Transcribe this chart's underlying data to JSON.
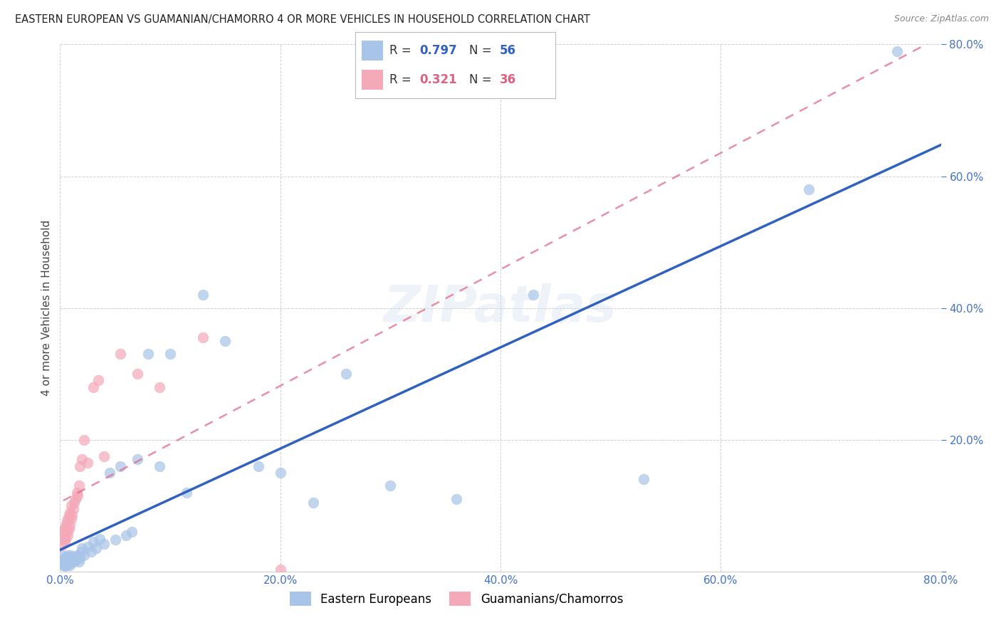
{
  "title": "EASTERN EUROPEAN VS GUAMANIAN/CHAMORRO 4 OR MORE VEHICLES IN HOUSEHOLD CORRELATION CHART",
  "source": "Source: ZipAtlas.com",
  "ylabel": "4 or more Vehicles in Household",
  "xlim": [
    0.0,
    0.8
  ],
  "ylim": [
    0.0,
    0.8
  ],
  "xticks": [
    0.0,
    0.2,
    0.4,
    0.6,
    0.8
  ],
  "yticks": [
    0.0,
    0.2,
    0.4,
    0.6,
    0.8
  ],
  "xticklabels": [
    "0.0%",
    "20.0%",
    "40.0%",
    "60.0%",
    "80.0%"
  ],
  "yticklabels": [
    "",
    "20.0%",
    "40.0%",
    "60.0%",
    "80.0%"
  ],
  "blue_R": 0.797,
  "blue_N": 56,
  "pink_R": 0.321,
  "pink_N": 36,
  "blue_color": "#a8c4e8",
  "pink_color": "#f4a8b8",
  "blue_line_color": "#3060c0",
  "pink_line_color": "#e06080",
  "watermark": "ZIPatlas",
  "legend_label_blue": "Eastern Europeans",
  "legend_label_pink": "Guamanians/Chamorros",
  "blue_points_x": [
    0.002,
    0.003,
    0.003,
    0.004,
    0.004,
    0.005,
    0.005,
    0.006,
    0.006,
    0.007,
    0.007,
    0.008,
    0.008,
    0.009,
    0.009,
    0.01,
    0.01,
    0.011,
    0.012,
    0.013,
    0.014,
    0.015,
    0.016,
    0.017,
    0.018,
    0.019,
    0.02,
    0.022,
    0.025,
    0.028,
    0.03,
    0.033,
    0.036,
    0.04,
    0.045,
    0.05,
    0.055,
    0.06,
    0.065,
    0.07,
    0.08,
    0.09,
    0.1,
    0.115,
    0.13,
    0.15,
    0.18,
    0.2,
    0.23,
    0.26,
    0.3,
    0.36,
    0.43,
    0.53,
    0.68,
    0.76
  ],
  "blue_points_y": [
    0.025,
    0.01,
    0.015,
    0.008,
    0.02,
    0.012,
    0.018,
    0.01,
    0.022,
    0.015,
    0.025,
    0.012,
    0.018,
    0.01,
    0.02,
    0.015,
    0.025,
    0.018,
    0.02,
    0.015,
    0.022,
    0.018,
    0.025,
    0.015,
    0.02,
    0.03,
    0.035,
    0.025,
    0.038,
    0.03,
    0.045,
    0.035,
    0.05,
    0.042,
    0.15,
    0.048,
    0.16,
    0.055,
    0.06,
    0.17,
    0.33,
    0.16,
    0.33,
    0.12,
    0.42,
    0.35,
    0.16,
    0.15,
    0.105,
    0.3,
    0.13,
    0.11,
    0.42,
    0.14,
    0.58,
    0.79
  ],
  "pink_points_x": [
    0.002,
    0.003,
    0.003,
    0.004,
    0.004,
    0.005,
    0.005,
    0.006,
    0.006,
    0.007,
    0.007,
    0.008,
    0.008,
    0.009,
    0.009,
    0.01,
    0.01,
    0.011,
    0.012,
    0.013,
    0.014,
    0.015,
    0.016,
    0.017,
    0.018,
    0.02,
    0.022,
    0.025,
    0.03,
    0.035,
    0.04,
    0.055,
    0.07,
    0.09,
    0.13,
    0.2
  ],
  "pink_points_y": [
    0.04,
    0.055,
    0.06,
    0.045,
    0.065,
    0.05,
    0.07,
    0.06,
    0.075,
    0.055,
    0.08,
    0.065,
    0.085,
    0.07,
    0.09,
    0.08,
    0.1,
    0.085,
    0.095,
    0.105,
    0.11,
    0.12,
    0.115,
    0.13,
    0.16,
    0.17,
    0.2,
    0.165,
    0.28,
    0.29,
    0.175,
    0.33,
    0.3,
    0.28,
    0.355,
    0.003
  ],
  "blue_line_params": [
    -0.02,
    1.06
  ],
  "pink_line_params": [
    0.055,
    1.3
  ]
}
